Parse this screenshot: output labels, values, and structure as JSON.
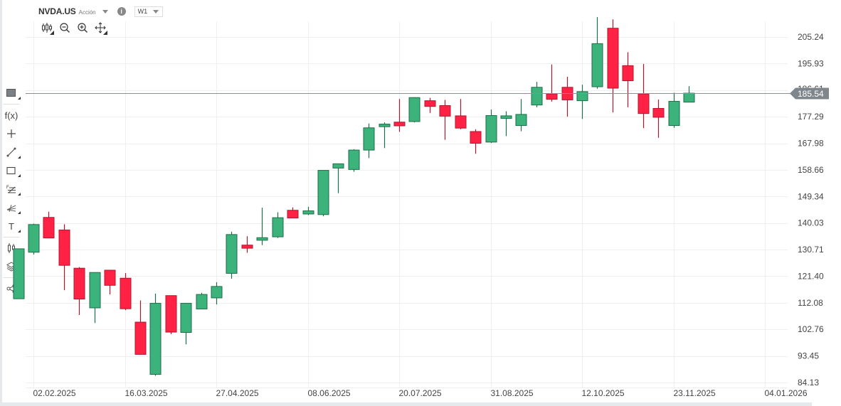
{
  "header": {
    "symbol": "NVDA.US",
    "instrument_type": "Acción",
    "info_icon": "i",
    "timeframe": "W1"
  },
  "toolbar": {
    "tools": [
      {
        "name": "chart-type-candles-icon"
      },
      {
        "name": "zoom-out-icon"
      },
      {
        "name": "zoom-in-icon"
      },
      {
        "name": "pan-move-icon"
      }
    ]
  },
  "sidebar": {
    "items": [
      {
        "name": "color-square-icon"
      },
      {
        "name": "function-fx-icon",
        "label": "f(x)"
      },
      {
        "name": "crosshair-icon"
      },
      {
        "name": "trendline-icon"
      },
      {
        "name": "rectangle-icon"
      },
      {
        "name": "fibonacci-icon"
      },
      {
        "name": "fan-icon"
      },
      {
        "name": "text-icon",
        "label": "T"
      },
      {
        "name": "candles-icon"
      },
      {
        "name": "layers-icon"
      },
      {
        "name": "share-icon"
      }
    ]
  },
  "colors": {
    "up": "#3cb37a",
    "up_border": "#1f6e4a",
    "down": "#ff2244",
    "down_border": "#b0162e",
    "grid": "#efefef",
    "current_price_line": "#8a9196",
    "current_price_tag": "#7f878d"
  },
  "chart_data": {
    "type": "candlestick",
    "title": "NVDA.US",
    "subtitle": "Acción",
    "timeframe": "W1",
    "xlabel": "",
    "ylabel": "",
    "ylim": [
      84.13,
      210
    ],
    "y_ticks": [
      205.24,
      195.93,
      186.61,
      177.29,
      167.98,
      158.66,
      149.34,
      140.03,
      130.71,
      121.4,
      112.08,
      102.76,
      93.45,
      84.13
    ],
    "x_ticks": [
      "02.02.2025",
      "16.03.2025",
      "27.04.2025",
      "08.06.2025",
      "20.07.2025",
      "31.08.2025",
      "12.10.2025",
      "23.11.2025",
      "04.01.2026"
    ],
    "current_price": 185.54,
    "grid": true,
    "legend": "none",
    "candles": [
      {
        "date": "26.01.2025",
        "open": 113.5,
        "high": 131.0,
        "low": 113.5,
        "close": 131.0
      },
      {
        "date": "02.02.2025",
        "open": 129.8,
        "high": 139.8,
        "low": 129.0,
        "close": 139.5
      },
      {
        "date": "09.02.2025",
        "open": 142.0,
        "high": 144.0,
        "low": 134.7,
        "close": 134.8
      },
      {
        "date": "16.02.2025",
        "open": 137.6,
        "high": 139.6,
        "low": 116.5,
        "close": 125.2
      },
      {
        "date": "23.02.2025",
        "open": 124.2,
        "high": 124.6,
        "low": 107.8,
        "close": 113.4
      },
      {
        "date": "02.03.2025",
        "open": 110.3,
        "high": 122.7,
        "low": 105.0,
        "close": 122.7
      },
      {
        "date": "09.03.2025",
        "open": 123.5,
        "high": 123.5,
        "low": 115.0,
        "close": 118.2
      },
      {
        "date": "16.03.2025",
        "open": 120.7,
        "high": 122.5,
        "low": 109.5,
        "close": 110.0
      },
      {
        "date": "23.03.2025",
        "open": 105.3,
        "high": 112.9,
        "low": 94.8,
        "close": 94.0
      },
      {
        "date": "30.03.2025",
        "open": 87.0,
        "high": 115.3,
        "low": 86.5,
        "close": 111.9
      },
      {
        "date": "06.04.2025",
        "open": 114.6,
        "high": 114.6,
        "low": 101.1,
        "close": 101.8
      },
      {
        "date": "13.04.2025",
        "open": 101.7,
        "high": 111.9,
        "low": 97.5,
        "close": 111.9
      },
      {
        "date": "20.04.2025",
        "open": 109.9,
        "high": 115.6,
        "low": 109.9,
        "close": 115.0
      },
      {
        "date": "27.04.2025",
        "open": 113.8,
        "high": 119.3,
        "low": 111.5,
        "close": 117.8
      },
      {
        "date": "04.05.2025",
        "open": 122.4,
        "high": 137.0,
        "low": 120.5,
        "close": 136.0
      },
      {
        "date": "11.05.2025",
        "open": 132.3,
        "high": 135.4,
        "low": 129.6,
        "close": 131.2
      },
      {
        "date": "18.05.2025",
        "open": 134.0,
        "high": 145.4,
        "low": 132.3,
        "close": 134.9
      },
      {
        "date": "25.05.2025",
        "open": 135.2,
        "high": 143.8,
        "low": 134.8,
        "close": 141.9
      },
      {
        "date": "01.06.2025",
        "open": 144.5,
        "high": 145.5,
        "low": 141.9,
        "close": 141.8
      },
      {
        "date": "08.06.2025",
        "open": 143.2,
        "high": 145.7,
        "low": 142.8,
        "close": 144.3
      },
      {
        "date": "15.06.2025",
        "open": 143.0,
        "high": 158.3,
        "low": 142.4,
        "close": 158.5
      },
      {
        "date": "22.06.2025",
        "open": 159.3,
        "high": 160.8,
        "low": 150.5,
        "close": 160.8
      },
      {
        "date": "29.06.2025",
        "open": 158.8,
        "high": 165.9,
        "low": 158.0,
        "close": 165.6
      },
      {
        "date": "06.07.2025",
        "open": 165.6,
        "high": 174.9,
        "low": 162.8,
        "close": 173.4
      },
      {
        "date": "13.07.2025",
        "open": 173.8,
        "high": 175.3,
        "low": 166.3,
        "close": 174.7
      },
      {
        "date": "20.07.2025",
        "open": 175.4,
        "high": 183.5,
        "low": 172.0,
        "close": 174.1
      },
      {
        "date": "27.07.2025",
        "open": 175.6,
        "high": 184.1,
        "low": 175.3,
        "close": 184.0
      },
      {
        "date": "03.08.2025",
        "open": 182.9,
        "high": 183.9,
        "low": 178.6,
        "close": 180.9
      },
      {
        "date": "10.08.2025",
        "open": 181.2,
        "high": 183.2,
        "low": 169.2,
        "close": 177.5
      },
      {
        "date": "17.08.2025",
        "open": 177.6,
        "high": 183.5,
        "low": 172.9,
        "close": 173.3
      },
      {
        "date": "24.08.2025",
        "open": 172.1,
        "high": 172.9,
        "low": 164.3,
        "close": 168.0
      },
      {
        "date": "31.08.2025",
        "open": 168.4,
        "high": 179.8,
        "low": 168.1,
        "close": 177.7
      },
      {
        "date": "07.09.2025",
        "open": 176.7,
        "high": 179.2,
        "low": 170.5,
        "close": 177.6
      },
      {
        "date": "14.09.2025",
        "open": 174.2,
        "high": 183.5,
        "low": 172.2,
        "close": 178.1
      },
      {
        "date": "21.09.2025",
        "open": 181.4,
        "high": 189.5,
        "low": 180.6,
        "close": 187.6
      },
      {
        "date": "28.09.2025",
        "open": 185.3,
        "high": 195.6,
        "low": 182.6,
        "close": 183.4
      },
      {
        "date": "05.10.2025",
        "open": 187.6,
        "high": 191.3,
        "low": 177.3,
        "close": 183.2
      },
      {
        "date": "12.10.2025",
        "open": 182.9,
        "high": 188.5,
        "low": 176.5,
        "close": 186.1
      },
      {
        "date": "19.10.2025",
        "open": 187.8,
        "high": 212.2,
        "low": 187.1,
        "close": 202.9
      },
      {
        "date": "26.10.2025",
        "open": 208.3,
        "high": 211.4,
        "low": 178.8,
        "close": 187.3
      },
      {
        "date": "02.11.2025",
        "open": 195.2,
        "high": 199.9,
        "low": 180.6,
        "close": 189.9
      },
      {
        "date": "09.11.2025",
        "open": 185.3,
        "high": 195.8,
        "low": 173.3,
        "close": 178.4
      },
      {
        "date": "16.11.2025",
        "open": 180.2,
        "high": 183.3,
        "low": 169.9,
        "close": 177.1
      },
      {
        "date": "23.11.2025",
        "open": 174.2,
        "high": 185.7,
        "low": 173.4,
        "close": 182.7
      },
      {
        "date": "30.11.2025",
        "open": 182.4,
        "high": 188.0,
        "low": 182.4,
        "close": 185.54
      }
    ]
  }
}
